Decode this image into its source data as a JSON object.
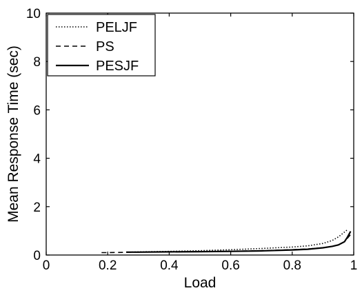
{
  "chart_data": {
    "type": "line",
    "xlabel": "Load",
    "ylabel": "Mean Response Time (sec)",
    "xlim": [
      0,
      1
    ],
    "ylim": [
      0,
      10
    ],
    "xticks": [
      "0",
      "0.2",
      "0.4",
      "0.6",
      "0.8",
      "1"
    ],
    "yticks": [
      "0",
      "2",
      "4",
      "6",
      "8",
      "10"
    ],
    "grid": false,
    "legend_position": "top-left",
    "series": [
      {
        "name": "PELJF",
        "style": "dotted",
        "color": "#000000",
        "x": [
          0.27,
          0.3,
          0.4,
          0.5,
          0.6,
          0.7,
          0.8,
          0.85,
          0.9,
          0.93,
          0.95,
          0.97,
          0.98
        ],
        "y": [
          0.12,
          0.13,
          0.15,
          0.18,
          0.22,
          0.27,
          0.33,
          0.38,
          0.48,
          0.6,
          0.75,
          0.95,
          1.05
        ]
      },
      {
        "name": "PS",
        "style": "dashed",
        "color": "#000000",
        "x": [
          0.18,
          0.2,
          0.3,
          0.4,
          0.5,
          0.6,
          0.7,
          0.8,
          0.85,
          0.9,
          0.93,
          0.95,
          0.97,
          0.98,
          0.99
        ],
        "y": [
          0.1,
          0.1,
          0.12,
          0.13,
          0.14,
          0.16,
          0.18,
          0.22,
          0.25,
          0.3,
          0.36,
          0.42,
          0.55,
          0.7,
          0.85
        ]
      },
      {
        "name": "PESJF",
        "style": "solid",
        "color": "#000000",
        "x": [
          0.26,
          0.3,
          0.4,
          0.5,
          0.6,
          0.7,
          0.8,
          0.85,
          0.9,
          0.93,
          0.95,
          0.97,
          0.98,
          0.99
        ],
        "y": [
          0.12,
          0.12,
          0.13,
          0.14,
          0.15,
          0.17,
          0.21,
          0.24,
          0.3,
          0.36,
          0.42,
          0.55,
          0.75,
          0.98
        ]
      }
    ]
  }
}
